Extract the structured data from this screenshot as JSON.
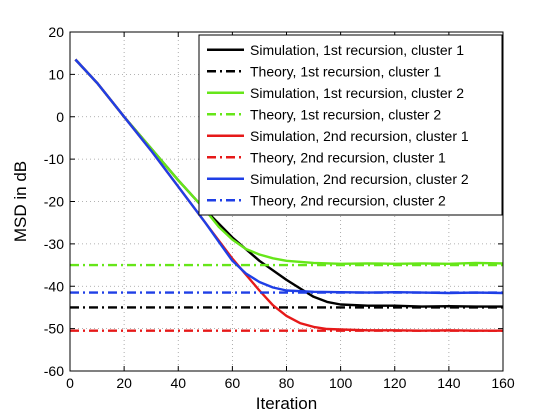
{
  "chart_data": {
    "type": "line",
    "title": "",
    "xlabel": "Iteration",
    "ylabel": "MSD in dB",
    "xlim": [
      0,
      160
    ],
    "ylim": [
      -60,
      20
    ],
    "xticks": [
      0,
      20,
      40,
      60,
      80,
      100,
      120,
      140,
      160
    ],
    "yticks": [
      20,
      10,
      0,
      -10,
      -20,
      -30,
      -40,
      -50,
      -60
    ],
    "grid": true,
    "legend_position": "top-right",
    "series": [
      {
        "name": "Simulation, 1st recursion, cluster 1",
        "color": "#000000",
        "style": "solid",
        "x": [
          2,
          10,
          20,
          30,
          40,
          50,
          60,
          70,
          80,
          85,
          90,
          95,
          100,
          110,
          120,
          130,
          140,
          150,
          160
        ],
        "y": [
          13.5,
          8,
          0,
          -7.5,
          -15,
          -22,
          -28.5,
          -34,
          -38.5,
          -40.5,
          -42.5,
          -43.7,
          -44.3,
          -44.6,
          -44.6,
          -44.8,
          -44.7,
          -44.8,
          -44.8
        ]
      },
      {
        "name": "Theory, 1st recursion, cluster 1",
        "color": "#000000",
        "style": "dashdot",
        "x": [
          0,
          160
        ],
        "y": [
          -45,
          -45
        ]
      },
      {
        "name": "Simulation, 1st recursion, cluster 2",
        "color": "#66e619",
        "style": "solid",
        "x": [
          2,
          10,
          20,
          30,
          40,
          50,
          55,
          60,
          65,
          70,
          75,
          80,
          90,
          100,
          110,
          120,
          130,
          140,
          150,
          160
        ],
        "y": [
          13.5,
          8,
          0,
          -7.5,
          -15,
          -22,
          -26,
          -29,
          -31.2,
          -32.5,
          -33.4,
          -34,
          -34.5,
          -34.7,
          -34.6,
          -34.7,
          -34.6,
          -34.7,
          -34.5,
          -34.6
        ]
      },
      {
        "name": "Theory, 1st recursion, cluster 2",
        "color": "#66e619",
        "style": "dashdot",
        "x": [
          0,
          160
        ],
        "y": [
          -35,
          -35
        ]
      },
      {
        "name": "Simulation, 2nd recursion, cluster 1",
        "color": "#e61919",
        "style": "solid",
        "x": [
          2,
          10,
          20,
          30,
          40,
          50,
          60,
          70,
          75,
          80,
          85,
          90,
          95,
          100,
          110,
          120,
          130,
          140,
          150,
          160
        ],
        "y": [
          13.5,
          8,
          0,
          -8,
          -16.5,
          -25,
          -33.5,
          -41,
          -44.5,
          -47,
          -48.7,
          -49.6,
          -50.1,
          -50.2,
          -50.4,
          -50.4,
          -50.5,
          -50.4,
          -50.5,
          -50.5
        ]
      },
      {
        "name": "Theory, 2nd recursion, cluster 1",
        "color": "#e61919",
        "style": "dashdot",
        "x": [
          0,
          160
        ],
        "y": [
          -50.5,
          -50.5
        ]
      },
      {
        "name": "Simulation, 2nd recursion, cluster 2",
        "color": "#1f3fe6",
        "style": "solid",
        "x": [
          2,
          10,
          20,
          30,
          40,
          50,
          55,
          60,
          65,
          70,
          75,
          80,
          90,
          100,
          110,
          120,
          130,
          140,
          150,
          160
        ],
        "y": [
          13.5,
          8,
          0,
          -8,
          -16.5,
          -25,
          -29.5,
          -34,
          -37,
          -39,
          -40.3,
          -41,
          -41.3,
          -41.4,
          -41.5,
          -41.4,
          -41.5,
          -41.6,
          -41.5,
          -41.6
        ]
      },
      {
        "name": "Theory, 2nd recursion, cluster 2",
        "color": "#1f3fe6",
        "style": "dashdot",
        "x": [
          0,
          160
        ],
        "y": [
          -41.5,
          -41.5
        ]
      }
    ]
  }
}
